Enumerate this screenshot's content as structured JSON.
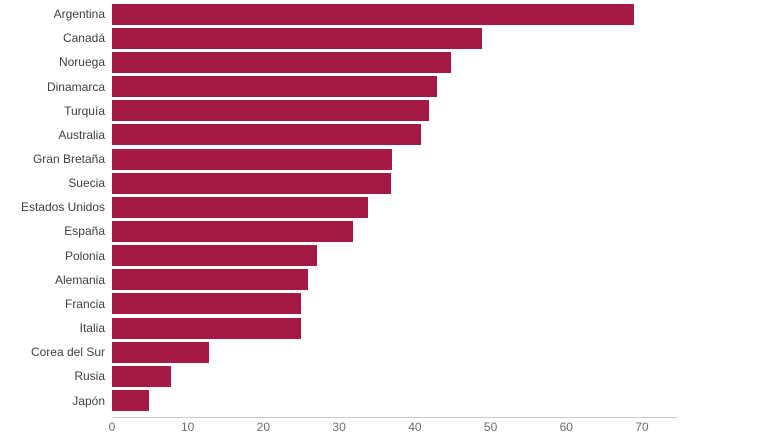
{
  "chart_data": {
    "type": "bar",
    "orientation": "horizontal",
    "title": "",
    "xlabel": "",
    "ylabel": "",
    "categories": [
      "Argentina",
      "Canadá",
      "Noruega",
      "Dinamarca",
      "Turquía",
      "Australia",
      "Gran Bretaña",
      "Suecia",
      "Estados Unidos",
      "España",
      "Polonia",
      "Alemania",
      "Francia",
      "Italia",
      "Corea del Sur",
      "Rusia",
      "Japón"
    ],
    "values": [
      69,
      48.8,
      44.8,
      42.9,
      41.9,
      40.8,
      37,
      36.9,
      33.8,
      31.8,
      27.1,
      25.9,
      25,
      25,
      12.8,
      7.8,
      4.9
    ],
    "x_ticks": [
      "0",
      "10",
      "20",
      "30",
      "40",
      "50",
      "60",
      "70"
    ],
    "x_tick_values": [
      0,
      10,
      20,
      30,
      40,
      50,
      60,
      70
    ],
    "xlim": [
      0,
      74.8
    ],
    "grid": false,
    "legend": false,
    "bar_color": "#a41a45",
    "category_label_color": "#3e3e3e",
    "tick_label_color": "#6d6d6d",
    "axis_line_color": "#cccccc",
    "background_color": "#ffffff"
  }
}
